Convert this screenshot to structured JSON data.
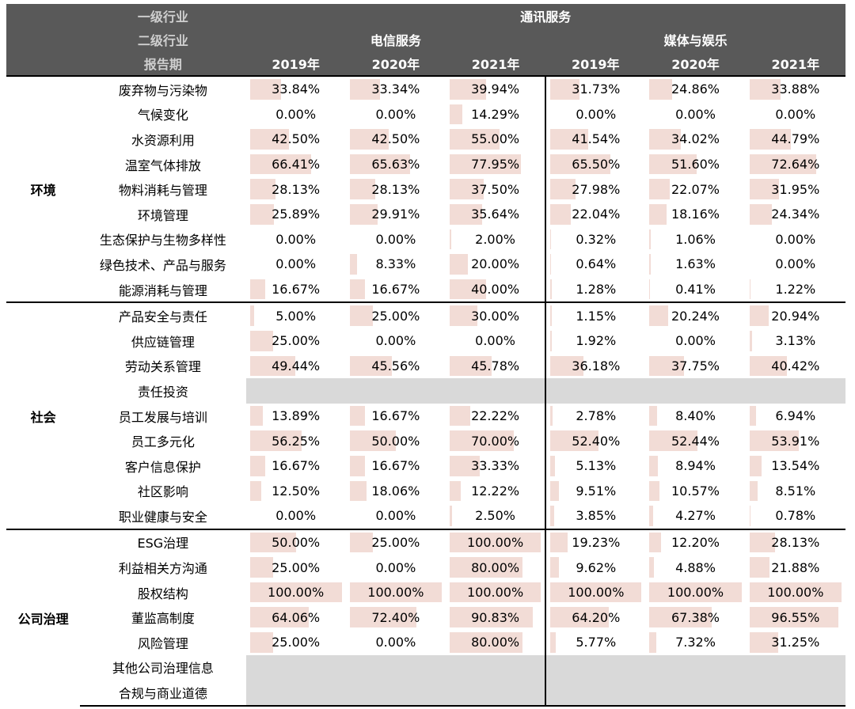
{
  "header": {
    "level1_label": "一级行业",
    "level2_label": "二级行业",
    "period_label": "报告期",
    "level1": "通讯服务",
    "level2": [
      "电信服务",
      "媒体与娱乐"
    ],
    "years": [
      "2019年",
      "2020年",
      "2021年",
      "2019年",
      "2020年",
      "2021年"
    ]
  },
  "groups": [
    {
      "name": "环境",
      "rows": [
        {
          "item": "废弃物与污染物",
          "values": [
            "33.84%",
            "33.34%",
            "39.94%",
            "31.73%",
            "24.86%",
            "33.88%"
          ]
        },
        {
          "item": "气候变化",
          "values": [
            "0.00%",
            "0.00%",
            "14.29%",
            "0.00%",
            "0.00%",
            "0.00%"
          ]
        },
        {
          "item": "水资源利用",
          "values": [
            "42.50%",
            "42.50%",
            "55.00%",
            "41.54%",
            "34.02%",
            "44.79%"
          ]
        },
        {
          "item": "温室气体排放",
          "values": [
            "66.41%",
            "65.63%",
            "77.95%",
            "65.50%",
            "51.60%",
            "72.64%"
          ]
        },
        {
          "item": "物料消耗与管理",
          "values": [
            "28.13%",
            "28.13%",
            "37.50%",
            "27.98%",
            "22.07%",
            "31.95%"
          ]
        },
        {
          "item": "环境管理",
          "values": [
            "25.89%",
            "29.91%",
            "35.64%",
            "22.04%",
            "18.16%",
            "24.34%"
          ]
        },
        {
          "item": "生态保护与生物多样性",
          "values": [
            "0.00%",
            "0.00%",
            "2.00%",
            "0.32%",
            "1.06%",
            "0.00%"
          ]
        },
        {
          "item": "绿色技术、产品与服务",
          "values": [
            "0.00%",
            "8.33%",
            "20.00%",
            "0.64%",
            "1.63%",
            "0.00%"
          ]
        },
        {
          "item": "能源消耗与管理",
          "values": [
            "16.67%",
            "16.67%",
            "40.00%",
            "1.28%",
            "0.41%",
            "1.22%"
          ]
        }
      ]
    },
    {
      "name": "社会",
      "rows": [
        {
          "item": "产品安全与责任",
          "values": [
            "5.00%",
            "25.00%",
            "30.00%",
            "1.15%",
            "20.24%",
            "20.94%"
          ]
        },
        {
          "item": "供应链管理",
          "values": [
            "25.00%",
            "0.00%",
            "0.00%",
            "1.92%",
            "0.00%",
            "3.13%"
          ]
        },
        {
          "item": "劳动关系管理",
          "values": [
            "49.44%",
            "45.56%",
            "45.78%",
            "36.18%",
            "37.75%",
            "40.42%"
          ]
        },
        {
          "item": "责任投资",
          "values": [
            "",
            "",
            "",
            "",
            "",
            ""
          ]
        },
        {
          "item": "员工发展与培训",
          "values": [
            "13.89%",
            "16.67%",
            "22.22%",
            "2.78%",
            "8.40%",
            "6.94%"
          ]
        },
        {
          "item": "员工多元化",
          "values": [
            "56.25%",
            "50.00%",
            "70.00%",
            "52.40%",
            "52.44%",
            "53.91%"
          ]
        },
        {
          "item": "客户信息保护",
          "values": [
            "16.67%",
            "16.67%",
            "33.33%",
            "5.13%",
            "8.94%",
            "13.54%"
          ]
        },
        {
          "item": "社区影响",
          "values": [
            "12.50%",
            "18.06%",
            "12.22%",
            "9.51%",
            "10.57%",
            "8.51%"
          ]
        },
        {
          "item": "职业健康与安全",
          "values": [
            "0.00%",
            "0.00%",
            "2.50%",
            "3.85%",
            "4.27%",
            "0.78%"
          ]
        }
      ]
    },
    {
      "name": "公司治理",
      "rows": [
        {
          "item": "ESG治理",
          "values": [
            "50.00%",
            "25.00%",
            "100.00%",
            "19.23%",
            "12.20%",
            "28.13%"
          ]
        },
        {
          "item": "利益相关方沟通",
          "values": [
            "25.00%",
            "0.00%",
            "80.00%",
            "9.62%",
            "4.88%",
            "21.88%"
          ]
        },
        {
          "item": "股权结构",
          "values": [
            "100.00%",
            "100.00%",
            "100.00%",
            "100.00%",
            "100.00%",
            "100.00%"
          ]
        },
        {
          "item": "董监高制度",
          "values": [
            "64.06%",
            "72.40%",
            "90.83%",
            "64.20%",
            "67.38%",
            "96.55%"
          ]
        },
        {
          "item": "风险管理",
          "values": [
            "25.00%",
            "0.00%",
            "80.00%",
            "5.77%",
            "7.32%",
            "31.25%"
          ]
        },
        {
          "item": "其他公司治理信息",
          "values": [
            "",
            "",
            "",
            "",
            "",
            ""
          ]
        },
        {
          "item": "合规与商业道德",
          "values": [
            "",
            "",
            "",
            "",
            "",
            ""
          ]
        }
      ]
    }
  ],
  "colors": {
    "header_bg": "#595959",
    "header_text": "#ffffff",
    "bar_fill": "#f2dcd6",
    "empty_fill": "#d9d9d9",
    "rule": "#000000"
  }
}
